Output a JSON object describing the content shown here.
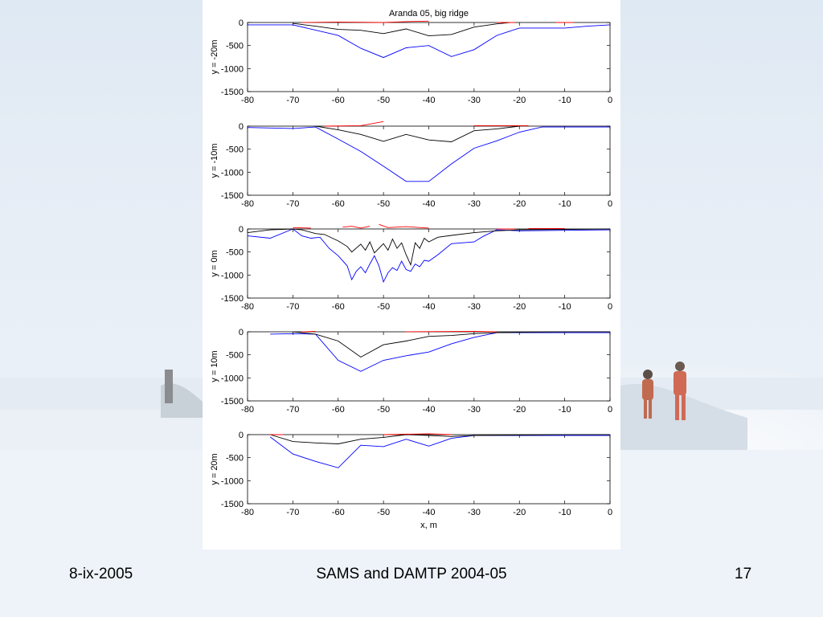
{
  "slide": {
    "footer_left": "8-ix-2005",
    "footer_center": "SAMS and DAMTP 2004-05",
    "footer_right": "17"
  },
  "colors": {
    "ice_bottom": "#0000ff",
    "surface_mean": "#000000",
    "snow_top": "#ff0000"
  },
  "chart_data": [
    {
      "type": "line",
      "title": "Aranda 05, big ridge",
      "ylabel": "y = -20m",
      "xlabel": "",
      "xlim": [
        -80,
        0
      ],
      "ylim": [
        -1500,
        0
      ],
      "xticks": [
        "-80",
        "-70",
        "-60",
        "-50",
        "-40",
        "-30",
        "-20",
        "-10",
        "0"
      ],
      "yticks": [
        "0",
        "-500",
        "-1000",
        "-1500"
      ],
      "series": [
        {
          "color": "#0000ff",
          "x": [
            -80,
            -70,
            -60,
            -55,
            -50,
            -45,
            -40,
            -35,
            -30,
            -25,
            -20,
            -15,
            -10,
            -5,
            0
          ],
          "y": [
            -50,
            -50,
            -280,
            -560,
            -760,
            -550,
            -500,
            -740,
            -590,
            -280,
            -120,
            -120,
            -120,
            -80,
            -50
          ]
        },
        {
          "color": "#000000",
          "x": [
            -70,
            -65,
            -60,
            -55,
            -50,
            -45,
            -40,
            -35,
            -30,
            -25,
            -22
          ],
          "y": [
            -20,
            -80,
            -150,
            -170,
            -240,
            -140,
            -290,
            -260,
            -100,
            -30,
            0
          ]
        },
        {
          "color": "#ff0000",
          "x": [
            -68,
            -60,
            -50,
            -45,
            -40
          ],
          "y": [
            0,
            10,
            0,
            20,
            30
          ]
        },
        {
          "color": "#ff0000",
          "x": [
            -25,
            -21
          ],
          "y": [
            0,
            0
          ]
        },
        {
          "color": "#ff0000",
          "x": [
            -12,
            -8
          ],
          "y": [
            0,
            0
          ]
        }
      ]
    },
    {
      "type": "line",
      "title": "",
      "ylabel": "y = -10m",
      "xlabel": "",
      "xlim": [
        -80,
        0
      ],
      "ylim": [
        -1500,
        0
      ],
      "xticks": [
        "-80",
        "-70",
        "-60",
        "-50",
        "-40",
        "-30",
        "-20",
        "-10",
        "0"
      ],
      "yticks": [
        "0",
        "-500",
        "-1000",
        "-1500"
      ],
      "series": [
        {
          "color": "#0000ff",
          "x": [
            -80,
            -70,
            -65,
            -60,
            -55,
            -50,
            -45,
            -40,
            -35,
            -30,
            -25,
            -20,
            -15,
            -10,
            0
          ],
          "y": [
            -30,
            -50,
            -20,
            -280,
            -550,
            -870,
            -1200,
            -1200,
            -820,
            -480,
            -320,
            -130,
            -20,
            -20,
            -20
          ]
        },
        {
          "color": "#000000",
          "x": [
            -65,
            -60,
            -55,
            -50,
            -45,
            -40,
            -35,
            -30,
            -25,
            -20
          ],
          "y": [
            0,
            -80,
            -180,
            -330,
            -180,
            -300,
            -340,
            -100,
            -60,
            0
          ]
        },
        {
          "color": "#ff0000",
          "x": [
            -63,
            -55,
            -50
          ],
          "y": [
            0,
            10,
            100
          ]
        },
        {
          "color": "#ff0000",
          "x": [
            -30,
            -18
          ],
          "y": [
            10,
            10
          ]
        }
      ]
    },
    {
      "type": "line",
      "title": "",
      "ylabel": "y = 0m",
      "xlabel": "",
      "xlim": [
        -80,
        0
      ],
      "ylim": [
        -1500,
        0
      ],
      "xticks": [
        "-80",
        "-70",
        "-60",
        "-50",
        "-40",
        "-30",
        "-20",
        "-10",
        "0"
      ],
      "yticks": [
        "0",
        "-500",
        "-1000",
        "-1500"
      ],
      "series": [
        {
          "color": "#0000ff",
          "x": [
            -80,
            -75,
            -70,
            -68,
            -66,
            -64,
            -62,
            -60,
            -58,
            -57,
            -56,
            -55,
            -54,
            -53,
            -52,
            -51,
            -50,
            -49,
            -48,
            -47,
            -46,
            -45,
            -44,
            -43,
            -42,
            -41,
            -40,
            -38,
            -35,
            -30,
            -28,
            -25,
            -20,
            -10,
            0
          ],
          "y": [
            -150,
            -200,
            0,
            -150,
            -200,
            -180,
            -420,
            -580,
            -800,
            -1100,
            -920,
            -820,
            -950,
            -760,
            -580,
            -800,
            -1150,
            -950,
            -840,
            -900,
            -700,
            -880,
            -920,
            -760,
            -820,
            -680,
            -700,
            -560,
            -320,
            -280,
            -160,
            -20,
            -40,
            -30,
            -20
          ]
        },
        {
          "color": "#000000",
          "x": [
            -80,
            -75,
            -70,
            -68,
            -65,
            -63,
            -60,
            -58,
            -57,
            -55,
            -54,
            -53,
            -52,
            -50,
            -49,
            -48,
            -47,
            -46,
            -45,
            -44,
            -43,
            -42,
            -41,
            -40,
            -38,
            -35,
            -30,
            -25,
            -20,
            -10,
            0
          ],
          "y": [
            -80,
            -20,
            0,
            -20,
            -100,
            -120,
            -260,
            -380,
            -500,
            -330,
            -460,
            -280,
            -520,
            -320,
            -460,
            -220,
            -420,
            -300,
            -560,
            -780,
            -300,
            -420,
            -200,
            -280,
            -180,
            -140,
            -80,
            -40,
            -20,
            -10,
            0
          ]
        },
        {
          "color": "#ff0000",
          "x": [
            -70,
            -66
          ],
          "y": [
            30,
            20
          ]
        },
        {
          "color": "#ff0000",
          "x": [
            -59,
            -57,
            -55,
            -53
          ],
          "y": [
            40,
            60,
            20,
            60
          ]
        },
        {
          "color": "#ff0000",
          "x": [
            -51,
            -49,
            -45,
            -40
          ],
          "y": [
            100,
            30,
            50,
            20
          ]
        },
        {
          "color": "#ff0000",
          "x": [
            -25,
            -21
          ],
          "y": [
            0,
            0
          ]
        },
        {
          "color": "#ff0000",
          "x": [
            -18,
            -10
          ],
          "y": [
            10,
            10
          ]
        }
      ]
    },
    {
      "type": "line",
      "title": "",
      "ylabel": "y = 10m",
      "xlabel": "",
      "xlim": [
        -80,
        0
      ],
      "ylim": [
        -1500,
        0
      ],
      "xticks": [
        "-80",
        "-70",
        "-60",
        "-50",
        "-40",
        "-30",
        "-20",
        "-10",
        "0"
      ],
      "yticks": [
        "0",
        "-500",
        "-1000",
        "-1500"
      ],
      "series": [
        {
          "color": "#0000ff",
          "x": [
            -75,
            -70,
            -65,
            -60,
            -55,
            -50,
            -45,
            -40,
            -35,
            -30,
            -25,
            -20,
            -10,
            0
          ],
          "y": [
            -50,
            -40,
            -50,
            -620,
            -860,
            -620,
            -520,
            -440,
            -260,
            -120,
            -20,
            -20,
            -20,
            -20
          ]
        },
        {
          "color": "#000000",
          "x": [
            -70,
            -65,
            -60,
            -55,
            -50,
            -45,
            -40,
            -35,
            -30,
            -25,
            -20,
            -10,
            0
          ],
          "y": [
            0,
            -50,
            -200,
            -550,
            -280,
            -200,
            -100,
            -80,
            -40,
            -20,
            -10,
            0,
            0
          ]
        },
        {
          "color": "#ff0000",
          "x": [
            -68,
            -65
          ],
          "y": [
            0,
            10
          ]
        },
        {
          "color": "#ff0000",
          "x": [
            -45,
            -30,
            -25
          ],
          "y": [
            0,
            10,
            0
          ]
        }
      ]
    },
    {
      "type": "line",
      "title": "",
      "ylabel": "y = 20m",
      "xlabel": "x, m",
      "xlim": [
        -80,
        0
      ],
      "ylim": [
        -1500,
        0
      ],
      "xticks": [
        "-80",
        "-70",
        "-60",
        "-50",
        "-40",
        "-30",
        "-20",
        "-10",
        "0"
      ],
      "yticks": [
        "0",
        "-500",
        "-1000",
        "-1500"
      ],
      "series": [
        {
          "color": "#0000ff",
          "x": [
            -75,
            -70,
            -65,
            -60,
            -55,
            -50,
            -45,
            -40,
            -35,
            -30,
            -20,
            -10,
            0
          ],
          "y": [
            -50,
            -420,
            -580,
            -720,
            -230,
            -260,
            -100,
            -250,
            -80,
            -20,
            -20,
            -20,
            -20
          ]
        },
        {
          "color": "#000000",
          "x": [
            -75,
            -70,
            -65,
            -60,
            -55,
            -50,
            -45,
            -40,
            -35,
            -30,
            -20,
            -10,
            0
          ],
          "y": [
            0,
            -150,
            -180,
            -200,
            -100,
            -60,
            0,
            -20,
            -40,
            -20,
            -10,
            0,
            0
          ]
        },
        {
          "color": "#ff0000",
          "x": [
            -75,
            -72
          ],
          "y": [
            0,
            0
          ]
        },
        {
          "color": "#ff0000",
          "x": [
            -50,
            -40,
            -35
          ],
          "y": [
            0,
            20,
            0
          ]
        }
      ]
    }
  ]
}
